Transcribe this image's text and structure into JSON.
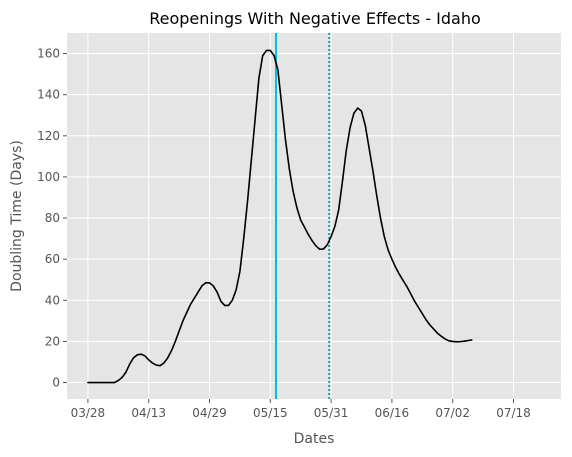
{
  "chart_data": {
    "type": "line",
    "title": "Reopenings With Negative Effects - Idaho",
    "xlabel": "Dates",
    "ylabel": "Doubling Time (Days)",
    "x_start": "03/28",
    "x_tick_labels": [
      "03/28",
      "04/13",
      "04/29",
      "05/15",
      "05/31",
      "06/16",
      "07/02",
      "07/18"
    ],
    "x_tick_days": [
      0,
      16,
      32,
      48,
      64,
      80,
      96,
      112
    ],
    "y_ticks": [
      0,
      20,
      40,
      60,
      80,
      100,
      120,
      140,
      160
    ],
    "xlim_days": [
      -5.5,
      124.5
    ],
    "ylim": [
      -8,
      170
    ],
    "grid": true,
    "background": "#e5e5e5",
    "series": [
      {
        "color": "#000000",
        "points": [
          [
            0,
            0
          ],
          [
            4,
            0
          ],
          [
            7,
            0
          ],
          [
            8,
            1
          ],
          [
            9,
            2.5
          ],
          [
            10,
            5
          ],
          [
            11,
            9
          ],
          [
            12,
            12
          ],
          [
            13,
            13.5
          ],
          [
            14,
            13.8
          ],
          [
            15,
            13
          ],
          [
            16,
            11
          ],
          [
            17,
            9.5
          ],
          [
            18,
            8.5
          ],
          [
            19,
            8.2
          ],
          [
            20,
            9.5
          ],
          [
            21,
            12
          ],
          [
            22,
            15.5
          ],
          [
            23,
            20
          ],
          [
            24,
            25
          ],
          [
            25,
            30
          ],
          [
            26,
            34
          ],
          [
            27,
            38
          ],
          [
            28,
            41
          ],
          [
            29,
            44
          ],
          [
            30,
            47
          ],
          [
            31,
            48.5
          ],
          [
            32,
            48.5
          ],
          [
            33,
            47
          ],
          [
            34,
            44
          ],
          [
            35,
            39.5
          ],
          [
            36,
            37.5
          ],
          [
            37,
            37.5
          ],
          [
            38,
            40
          ],
          [
            39,
            45
          ],
          [
            40,
            54
          ],
          [
            41,
            70
          ],
          [
            42,
            88
          ],
          [
            43,
            108
          ],
          [
            44,
            128
          ],
          [
            45,
            148
          ],
          [
            46,
            159
          ],
          [
            47,
            161.5
          ],
          [
            48,
            161.5
          ],
          [
            49,
            159
          ],
          [
            50,
            152
          ],
          [
            51,
            135
          ],
          [
            52,
            118
          ],
          [
            53,
            104
          ],
          [
            54,
            93
          ],
          [
            55,
            85
          ],
          [
            56,
            79
          ],
          [
            57,
            75.5
          ],
          [
            58,
            72
          ],
          [
            59,
            69
          ],
          [
            60,
            66.5
          ],
          [
            61,
            64.8
          ],
          [
            62,
            65
          ],
          [
            63,
            67
          ],
          [
            64,
            71
          ],
          [
            65,
            76
          ],
          [
            66,
            84
          ],
          [
            67,
            98
          ],
          [
            68,
            113
          ],
          [
            69,
            124
          ],
          [
            70,
            131
          ],
          [
            71,
            133.5
          ],
          [
            72,
            132
          ],
          [
            73,
            125
          ],
          [
            74,
            114
          ],
          [
            75,
            103
          ],
          [
            76,
            91
          ],
          [
            77,
            80
          ],
          [
            78,
            71
          ],
          [
            79,
            64.5
          ],
          [
            80,
            60
          ],
          [
            81,
            56
          ],
          [
            82,
            52.5
          ],
          [
            83,
            49.5
          ],
          [
            84,
            46.5
          ],
          [
            85,
            43
          ],
          [
            86,
            39.5
          ],
          [
            87,
            36.5
          ],
          [
            88,
            33.5
          ],
          [
            89,
            30.5
          ],
          [
            90,
            28
          ],
          [
            91,
            26
          ],
          [
            92,
            24
          ],
          [
            93,
            22.5
          ],
          [
            94,
            21.2
          ],
          [
            95,
            20.3
          ],
          [
            96,
            20
          ],
          [
            97,
            19.8
          ],
          [
            98,
            19.9
          ],
          [
            99,
            20.1
          ],
          [
            100,
            20.4
          ],
          [
            101,
            20.7
          ]
        ]
      }
    ],
    "vlines": [
      {
        "x_day": 49.5,
        "style": "solid",
        "color": "#00bfe6"
      },
      {
        "x_day": 63.5,
        "style": "dotted",
        "color": "#17a2a8"
      }
    ]
  }
}
